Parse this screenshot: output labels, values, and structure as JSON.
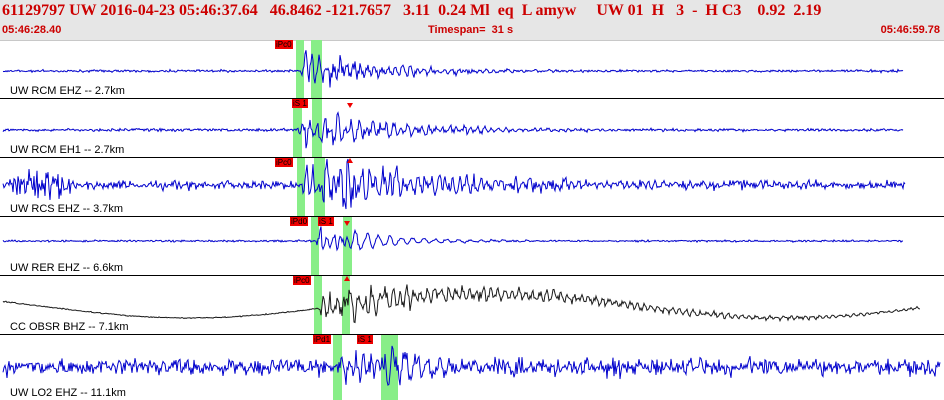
{
  "header": {
    "event_line": "61129797 UW 2016-04-23 05:46:37.64   46.8462 -121.7657   3.11  0.24 Ml  eq  L amyw     UW 01  H   3  -  H C3    0.92  2.19",
    "start_time": "05:46:28.40",
    "timespan": "Timespan=  31 s",
    "end_time": "05:46:59.78"
  },
  "colors": {
    "waveform": "#0000cc",
    "highlight": "#88ee88",
    "pick": "#ee0000",
    "header_text": "#cc0000"
  },
  "traces": [
    {
      "label": "UW RCM EHZ -- 2.7km",
      "picks": [
        "iPc0"
      ]
    },
    {
      "label": "UW RCM EH1 -- 2.7km",
      "picks": [
        "iS 1"
      ]
    },
    {
      "label": "UW RCS EHZ -- 3.7km",
      "picks": [
        "iPc0"
      ]
    },
    {
      "label": "UW RER EHZ -- 6.6km",
      "picks": [
        "iPd0",
        "iS 1"
      ]
    },
    {
      "label": "CC OBSR BHZ -- 7.1km",
      "picks": [
        "iPc0"
      ]
    },
    {
      "label": "UW LO2 EHZ -- 11.1km",
      "picks": [
        "iPd1",
        "iS 1"
      ]
    }
  ]
}
